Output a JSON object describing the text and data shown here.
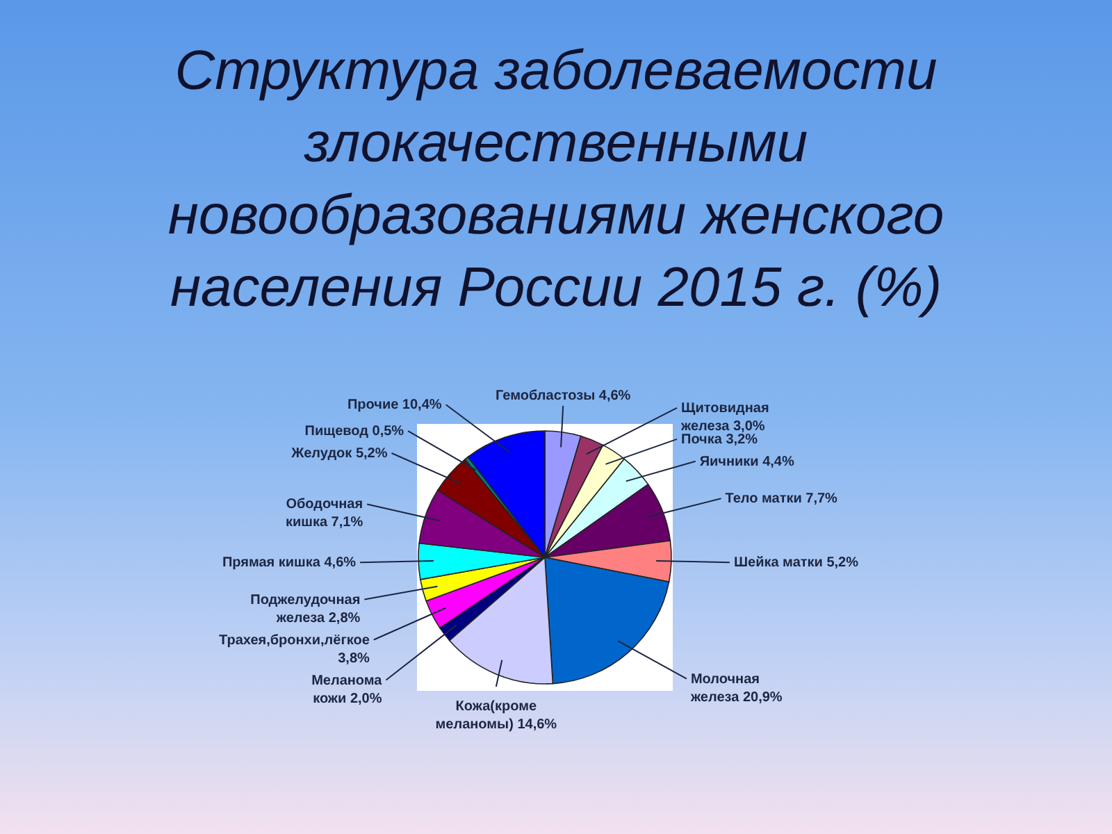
{
  "chart_data": {
    "type": "pie",
    "title": "Структура заболеваемости злокачественными новообразованиями женского населения России 2015 г. (%)",
    "categories": [
      "Гемобластозы",
      "Щитовидная железа",
      "Почка",
      "Яичники",
      "Тело матки",
      "Шейка матки",
      "Молочная железа",
      "Кожа(кроме меланомы)",
      "Меланома кожи",
      "Трахея,бронхи,лёгкое",
      "Поджелудочная железа",
      "Прямая кишка",
      "Ободочная кишка",
      "Желудок",
      "Пищевод",
      "Прочие"
    ],
    "values": [
      4.6,
      3.0,
      3.2,
      4.4,
      7.7,
      5.2,
      20.9,
      14.6,
      2.0,
      3.8,
      2.8,
      4.6,
      7.1,
      5.2,
      0.5,
      10.4
    ],
    "value_labels": [
      "4,6%",
      "3,0%",
      "3,2%",
      "4,4%",
      "7,7%",
      "5,2%",
      "20,9%",
      "14,6%",
      "2,0%",
      "3,8%",
      "2,8%",
      "4,6%",
      "7,1%",
      "5,2%",
      "0,5%",
      "10,4%"
    ],
    "colors": [
      "#9999ff",
      "#993366",
      "#ffffcc",
      "#ccffff",
      "#660066",
      "#ff8080",
      "#0066cc",
      "#ccccff",
      "#000080",
      "#ff00ff",
      "#ffff00",
      "#00ffff",
      "#800080",
      "#800000",
      "#008080",
      "#0000ff"
    ]
  }
}
